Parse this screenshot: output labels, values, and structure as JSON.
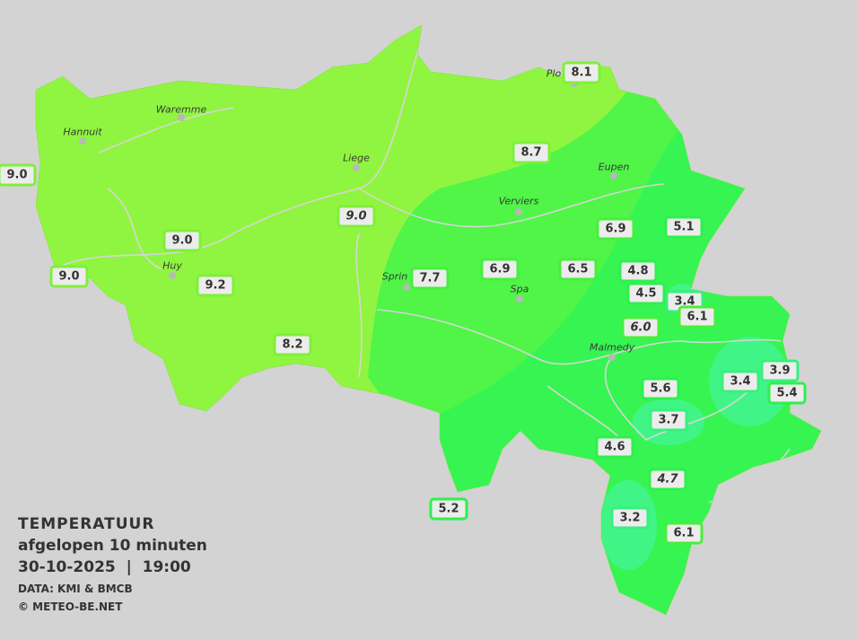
{
  "legend": {
    "title": "TEMPERATUUR",
    "subtitle": "afgelopen 10 minuten",
    "datetime": "30-10-2025  |  19:00",
    "source": "DATA: KMI & BMCB",
    "copyright": "© METEO-BE.NET"
  },
  "colors": {
    "background": "#d3d3d3",
    "zone_8_10": "#90f540",
    "zone_6_8": "#50f548",
    "zone_4_6": "#36f552",
    "zone_2_4": "#40f585"
  },
  "cities": [
    {
      "name": "Hannuit"
    },
    {
      "name": "Waremme"
    },
    {
      "name": "Liege"
    },
    {
      "name": "Huy"
    },
    {
      "name": "Verviers"
    },
    {
      "name": "Eupen"
    },
    {
      "name": "Sprin"
    },
    {
      "name": "Spa"
    },
    {
      "name": "Malmedy"
    },
    {
      "name": "Plo"
    }
  ],
  "stations": [
    {
      "value": "9.0"
    },
    {
      "value": "9.0",
      "italic": true
    },
    {
      "value": "9.0"
    },
    {
      "value": "9.0"
    },
    {
      "value": "9.2"
    },
    {
      "value": "8.2"
    },
    {
      "value": "8.1"
    },
    {
      "value": "8.7"
    },
    {
      "value": "7.7"
    },
    {
      "value": "6.9"
    },
    {
      "value": "6.5"
    },
    {
      "value": "6.9"
    },
    {
      "value": "5.1"
    },
    {
      "value": "4.8"
    },
    {
      "value": "4.5"
    },
    {
      "value": "3.4"
    },
    {
      "value": "6.1"
    },
    {
      "value": "6.0",
      "italic": true
    },
    {
      "value": "5.6"
    },
    {
      "value": "3.4"
    },
    {
      "value": "3.9"
    },
    {
      "value": "5.4"
    },
    {
      "value": "3.7"
    },
    {
      "value": "4.6"
    },
    {
      "value": "4.7",
      "italic": true
    },
    {
      "value": "5.2"
    },
    {
      "value": "3.2"
    },
    {
      "value": "6.1"
    }
  ]
}
